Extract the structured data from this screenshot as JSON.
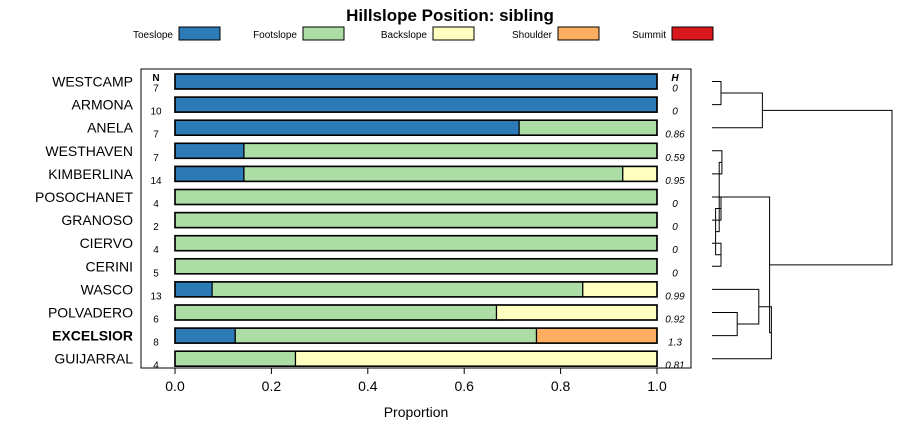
{
  "chart_data": {
    "type": "bar",
    "stacked": true,
    "orientation": "horizontal",
    "title": "Hillslope Position: sibling",
    "xlabel": "Proportion",
    "ylabel": "",
    "xlim": [
      0,
      1
    ],
    "xticks": [
      "0.0",
      "0.2",
      "0.4",
      "0.6",
      "0.8",
      "1.0"
    ],
    "n_header": "N",
    "h_header": "H",
    "legend": [
      {
        "name": "Toeslope",
        "color": "#2c7bb6"
      },
      {
        "name": "Footslope",
        "color": "#abdda4"
      },
      {
        "name": "Backslope",
        "color": "#ffffbf"
      },
      {
        "name": "Shoulder",
        "color": "#fdae61"
      },
      {
        "name": "Summit",
        "color": "#d7191c"
      }
    ],
    "categories": [
      "WESTCAMP",
      "ARMONA",
      "ANELA",
      "WESTHAVEN",
      "KIMBERLINA",
      "POSOCHANET",
      "GRANOSO",
      "CIERVO",
      "CERINI",
      "WASCO",
      "POLVADERO",
      "EXCELSIOR",
      "GUIJARRAL"
    ],
    "highlight": "EXCELSIOR",
    "n": [
      "7",
      "10",
      "7",
      "7",
      "14",
      "4",
      "2",
      "4",
      "5",
      "13",
      "6",
      "8",
      "4"
    ],
    "h": [
      "0",
      "0",
      "0.86",
      "0.59",
      "0.95",
      "0",
      "0",
      "0",
      "0",
      "0.99",
      "0.92",
      "1.3",
      "0.81"
    ],
    "series": [
      {
        "name": "Toeslope",
        "values": [
          1,
          1,
          0.714,
          0.143,
          0.143,
          0,
          0,
          0,
          0,
          0.077,
          0,
          0.125,
          0
        ]
      },
      {
        "name": "Footslope",
        "values": [
          0,
          0,
          0.286,
          0.857,
          0.786,
          1,
          1,
          1,
          1,
          0.769,
          0.667,
          0.625,
          0.25
        ]
      },
      {
        "name": "Backslope",
        "values": [
          0,
          0,
          0,
          0,
          0.071,
          0,
          0,
          0,
          0,
          0.154,
          0.333,
          0,
          0.75
        ]
      },
      {
        "name": "Shoulder",
        "values": [
          0,
          0,
          0,
          0,
          0,
          0,
          0,
          0,
          0,
          0,
          0,
          0.25,
          0
        ]
      },
      {
        "name": "Summit",
        "values": [
          0,
          0,
          0,
          0,
          0,
          0,
          0,
          0,
          0,
          0,
          0,
          0,
          0
        ]
      }
    ],
    "dendrogram": {
      "merges": [
        {
          "a": 0,
          "b": 1,
          "height": 0.0
        },
        {
          "a": 5,
          "b": 6,
          "height": 0.0
        },
        {
          "a": 7,
          "b": 8,
          "height": 0.0
        },
        {
          "a": 3,
          "b": 4,
          "height": 0.055
        },
        {
          "a": -2,
          "b": -3,
          "height": 0.02
        },
        {
          "a": -5,
          "b": -4,
          "height": 0.04
        },
        {
          "a": 10,
          "b": 11,
          "height": 0.14
        },
        {
          "a": -1,
          "b": 2,
          "height": 0.28
        },
        {
          "a": 9,
          "b": -7,
          "height": 0.26
        },
        {
          "a": -9,
          "b": 12,
          "height": 0.33
        },
        {
          "a": -6,
          "b": -10,
          "height": 0.32
        },
        {
          "a": -8,
          "b": -11,
          "height": 1.0
        }
      ],
      "max_height": 1.0
    }
  }
}
